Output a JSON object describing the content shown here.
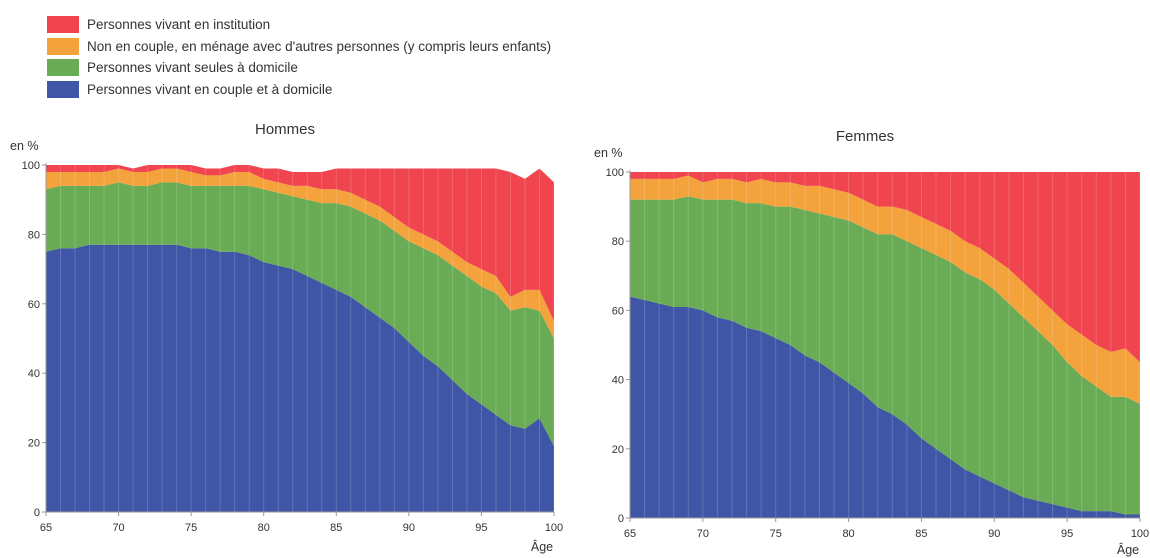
{
  "colors": {
    "institution": "#f0444f",
    "menage": "#f3a23c",
    "seules": "#6aab55",
    "couple": "#3f55a6"
  },
  "legend": [
    {
      "key": "institution",
      "label": "Personnes vivant en institution"
    },
    {
      "key": "menage",
      "label": "Non en couple, en ménage avec d'autres personnes (y compris leurs enfants)"
    },
    {
      "key": "seules",
      "label": "Personnes vivant seules à domicile"
    },
    {
      "key": "couple",
      "label": "Personnes vivant en couple et à domicile"
    }
  ],
  "chart_data": [
    {
      "type": "area",
      "stacked": true,
      "title": "Hommes",
      "ylabel": "en %",
      "xlabel": "Âge",
      "xlim": [
        65,
        100
      ],
      "ylim": [
        0,
        100
      ],
      "xticks": [
        65,
        70,
        75,
        80,
        85,
        90,
        95,
        100
      ],
      "yticks": [
        0,
        20,
        40,
        60,
        80,
        100
      ],
      "x": [
        65,
        66,
        67,
        68,
        69,
        70,
        71,
        72,
        73,
        74,
        75,
        76,
        77,
        78,
        79,
        80,
        81,
        82,
        83,
        84,
        85,
        86,
        87,
        88,
        89,
        90,
        91,
        92,
        93,
        94,
        95,
        96,
        97,
        98,
        99,
        100
      ],
      "series": [
        {
          "key": "couple",
          "name": "Personnes vivant en couple et à domicile",
          "values": [
            75,
            76,
            76,
            77,
            77,
            77,
            77,
            77,
            77,
            77,
            76,
            76,
            75,
            75,
            74,
            72,
            71,
            70,
            68,
            66,
            64,
            62,
            59,
            56,
            53,
            49,
            45,
            42,
            38,
            34,
            31,
            28,
            25,
            24,
            27,
            19
          ]
        },
        {
          "key": "seules",
          "name": "Personnes vivant seules à domicile",
          "values": [
            18,
            18,
            18,
            17,
            17,
            18,
            17,
            17,
            18,
            18,
            18,
            18,
            19,
            19,
            20,
            21,
            21,
            21,
            22,
            23,
            25,
            26,
            27,
            28,
            28,
            29,
            31,
            32,
            33,
            34,
            34,
            35,
            33,
            35,
            31,
            31
          ]
        },
        {
          "key": "menage",
          "name": "Non en couple, en ménage avec d'autres personnes (y compris leurs enfants)",
          "values": [
            5,
            4,
            4,
            4,
            4,
            4,
            4,
            4,
            4,
            4,
            4,
            3,
            3,
            4,
            4,
            3,
            3,
            3,
            4,
            4,
            4,
            4,
            4,
            4,
            4,
            4,
            4,
            4,
            4,
            4,
            5,
            5,
            4,
            5,
            6,
            5
          ]
        },
        {
          "key": "institution",
          "name": "Personnes vivant en institution",
          "values": [
            2,
            2,
            2,
            2,
            2,
            1,
            1,
            2,
            1,
            1,
            2,
            2,
            2,
            2,
            2,
            3,
            4,
            4,
            4,
            5,
            6,
            7,
            9,
            11,
            14,
            17,
            19,
            21,
            24,
            27,
            29,
            31,
            36,
            32,
            35,
            40
          ]
        }
      ]
    },
    {
      "type": "area",
      "stacked": true,
      "title": "Femmes",
      "ylabel": "en %",
      "xlabel": "Âge",
      "xlim": [
        65,
        100
      ],
      "ylim": [
        0,
        100
      ],
      "xticks": [
        65,
        70,
        75,
        80,
        85,
        90,
        95,
        100
      ],
      "yticks": [
        0,
        20,
        40,
        60,
        80,
        100
      ],
      "x": [
        65,
        66,
        67,
        68,
        69,
        70,
        71,
        72,
        73,
        74,
        75,
        76,
        77,
        78,
        79,
        80,
        81,
        82,
        83,
        84,
        85,
        86,
        87,
        88,
        89,
        90,
        91,
        92,
        93,
        94,
        95,
        96,
        97,
        98,
        99,
        100
      ],
      "series": [
        {
          "key": "couple",
          "name": "Personnes vivant en couple et à domicile",
          "values": [
            64,
            63,
            62,
            61,
            61,
            60,
            58,
            57,
            55,
            54,
            52,
            50,
            47,
            45,
            42,
            39,
            36,
            32,
            30,
            27,
            23,
            20,
            17,
            14,
            12,
            10,
            8,
            6,
            5,
            4,
            3,
            2,
            2,
            2,
            1,
            1
          ]
        },
        {
          "key": "seules",
          "name": "Personnes vivant seules à domicile",
          "values": [
            28,
            29,
            30,
            31,
            32,
            32,
            34,
            35,
            36,
            37,
            38,
            40,
            42,
            43,
            45,
            47,
            48,
            50,
            52,
            53,
            55,
            56,
            57,
            57,
            57,
            56,
            54,
            52,
            49,
            46,
            42,
            39,
            36,
            33,
            34,
            32
          ]
        },
        {
          "key": "menage",
          "name": "Non en couple, en ménage avec d'autres personnes (y compris leurs enfants)",
          "values": [
            6,
            6,
            6,
            6,
            6,
            5,
            6,
            6,
            6,
            7,
            7,
            7,
            7,
            8,
            8,
            8,
            8,
            8,
            8,
            9,
            9,
            9,
            9,
            9,
            9,
            9,
            10,
            10,
            10,
            10,
            11,
            12,
            12,
            13,
            14,
            12
          ]
        },
        {
          "key": "institution",
          "name": "Personnes vivant en institution",
          "values": [
            2,
            2,
            2,
            2,
            1,
            3,
            2,
            2,
            3,
            2,
            3,
            3,
            4,
            4,
            5,
            6,
            8,
            10,
            10,
            11,
            13,
            15,
            17,
            20,
            22,
            25,
            28,
            32,
            36,
            40,
            44,
            47,
            50,
            52,
            51,
            55
          ]
        }
      ]
    }
  ]
}
